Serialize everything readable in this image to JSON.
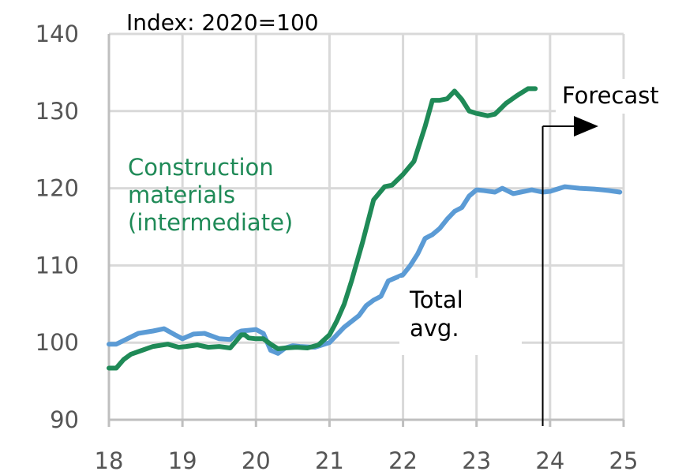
{
  "chart_data": {
    "type": "line",
    "unit_label": "Index: 2020=100",
    "x_ticks": [
      "18",
      "19",
      "20",
      "21",
      "22",
      "23",
      "24",
      "25"
    ],
    "y_ticks": [
      "90",
      "100",
      "110",
      "120",
      "130",
      "140"
    ],
    "xlim": [
      2018,
      2025
    ],
    "ylim": [
      90,
      140
    ],
    "grid": true,
    "colors": {
      "construction": "#1f8a57",
      "total": "#5b9bd5",
      "grid": "#d9d9d9",
      "axis": "#bfbfbf"
    },
    "series": [
      {
        "key": "construction",
        "name": "Construction materials (intermediate)",
        "label_lines": [
          "Construction",
          "materials",
          "(intermediate)"
        ],
        "x": [
          2018.0,
          2018.1,
          2018.2,
          2018.3,
          2018.45,
          2018.6,
          2018.8,
          2018.95,
          2019.05,
          2019.2,
          2019.35,
          2019.5,
          2019.65,
          2019.8,
          2019.85,
          2019.9,
          2020.0,
          2020.1,
          2020.2,
          2020.3,
          2020.4,
          2020.55,
          2020.7,
          2020.85,
          2021.0,
          2021.1,
          2021.2,
          2021.3,
          2021.45,
          2021.6,
          2021.75,
          2021.85,
          2022.0,
          2022.15,
          2022.3,
          2022.4,
          2022.5,
          2022.6,
          2022.7,
          2022.8,
          2022.9,
          2023.0,
          2023.15,
          2023.25,
          2023.4,
          2023.55,
          2023.7,
          2023.8
        ],
        "y": [
          96.7,
          96.7,
          97.8,
          98.5,
          99.0,
          99.5,
          99.8,
          99.4,
          99.5,
          99.7,
          99.4,
          99.5,
          99.3,
          101.0,
          101.0,
          100.6,
          100.5,
          100.5,
          99.8,
          99.2,
          99.3,
          99.4,
          99.3,
          99.7,
          101.0,
          102.8,
          105.0,
          108.0,
          113.0,
          118.5,
          120.2,
          120.4,
          121.8,
          123.5,
          128.0,
          131.4,
          131.4,
          131.6,
          132.6,
          131.5,
          130.0,
          129.7,
          129.4,
          129.6,
          131.0,
          132.0,
          132.9,
          132.9
        ]
      },
      {
        "key": "total",
        "name": "Total avg.",
        "label_lines": [
          "Total",
          "avg."
        ],
        "x": [
          2018.0,
          2018.1,
          2018.25,
          2018.4,
          2018.6,
          2018.75,
          2018.9,
          2019.0,
          2019.15,
          2019.3,
          2019.5,
          2019.65,
          2019.75,
          2019.8,
          2019.9,
          2020.0,
          2020.1,
          2020.2,
          2020.3,
          2020.4,
          2020.5,
          2020.6,
          2020.8,
          2021.0,
          2021.2,
          2021.4,
          2021.5,
          2021.6,
          2021.7,
          2021.8,
          2022.0,
          2022.1,
          2022.2,
          2022.3,
          2022.4,
          2022.5,
          2022.6,
          2022.7,
          2022.8,
          2022.9,
          2023.0,
          2023.1,
          2023.25,
          2023.35,
          2023.5,
          2023.6,
          2023.75,
          2023.9,
          2024.0,
          2024.2,
          2024.4,
          2024.6,
          2024.8,
          2024.95
        ],
        "y": [
          99.8,
          99.8,
          100.5,
          101.2,
          101.5,
          101.8,
          101.0,
          100.5,
          101.1,
          101.2,
          100.5,
          100.4,
          101.3,
          101.5,
          101.6,
          101.7,
          101.2,
          99.0,
          98.6,
          99.3,
          99.6,
          99.5,
          99.4,
          100.0,
          102.0,
          103.5,
          104.8,
          105.5,
          106.0,
          108.0,
          108.8,
          110.0,
          111.5,
          113.5,
          114.0,
          114.8,
          116.0,
          117.0,
          117.5,
          119.0,
          119.8,
          119.7,
          119.5,
          120.0,
          119.3,
          119.5,
          119.8,
          119.5,
          119.6,
          120.2,
          120.0,
          119.9,
          119.7,
          119.5
        ]
      }
    ],
    "forecast": {
      "label": "Forecast",
      "start_x": 2023.9
    }
  }
}
